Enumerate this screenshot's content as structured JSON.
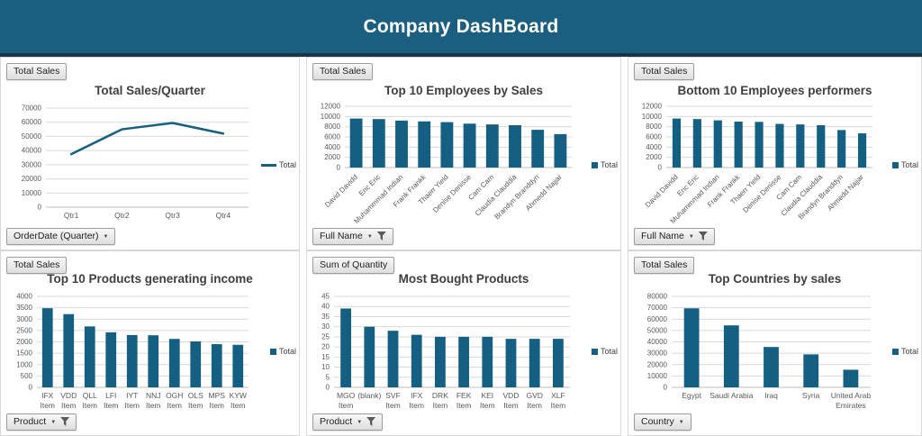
{
  "header": {
    "title": "Company DashBoard"
  },
  "accent_color": "#156082",
  "chart_data": [
    {
      "id": "total-sales-quarter",
      "type": "line",
      "title": "Total Sales/Quarter",
      "value_button": "Total Sales",
      "field_button": "OrderDate (Quarter)",
      "field_filtered": false,
      "categories": [
        [
          "Qtr1"
        ],
        [
          "Qtr2"
        ],
        [
          "Qtr3"
        ],
        [
          "Qtr4"
        ]
      ],
      "values": [
        37500,
        55000,
        59500,
        52000
      ],
      "ylim": [
        0,
        70000
      ],
      "ytick": 10000,
      "legend": [
        "Total"
      ],
      "legend_position": "right",
      "grid": true,
      "color": "#156082"
    },
    {
      "id": "top-10-employees-by-sales",
      "type": "bar",
      "title": "Top 10 Employees by Sales",
      "value_button": "Total Sales",
      "field_button": "Full Name",
      "field_filtered": true,
      "categories": [
        [
          "David Davidd"
        ],
        [
          "Eric Eric"
        ],
        [
          "Muhammmad Indian"
        ],
        [
          "Frank Frankk"
        ],
        [
          "Thaerr Yield"
        ],
        [
          "Denise Denisse"
        ],
        [
          "Cam Cam"
        ],
        [
          "Claudia Clauddia"
        ],
        [
          "Brandyn Branddyn"
        ],
        [
          "Ahmedd Najjar"
        ]
      ],
      "values": [
        9600,
        9500,
        9200,
        9050,
        8900,
        8600,
        8450,
        8300,
        7400,
        6550
      ],
      "ylim": [
        0,
        12000
      ],
      "ytick": 2000,
      "legend": [
        "Total"
      ],
      "legend_position": "right",
      "grid": true,
      "color": "#156082"
    },
    {
      "id": "bottom-10-employees-performers",
      "type": "bar",
      "title": "Bottom 10 Employees performers",
      "value_button": "Total Sales",
      "field_button": "Full Name",
      "field_filtered": true,
      "categories": [
        [
          "David Davidd"
        ],
        [
          "Eric Eric"
        ],
        [
          "Muhammmad Indian"
        ],
        [
          "Frank Frankk"
        ],
        [
          "Thaerr Yield"
        ],
        [
          "Denise Denisse"
        ],
        [
          "Cam Cam"
        ],
        [
          "Claudia Clauddia"
        ],
        [
          "Brandyn Branddyn"
        ],
        [
          "Ahmedd Najjar"
        ]
      ],
      "values": [
        9600,
        9500,
        9250,
        9000,
        8950,
        8550,
        8450,
        8300,
        7350,
        6700
      ],
      "ylim": [
        0,
        12000
      ],
      "ytick": 2000,
      "legend": [
        "Total"
      ],
      "legend_position": "right",
      "grid": true,
      "color": "#156082"
    },
    {
      "id": "top-10-products-generating-income",
      "type": "bar",
      "title": "Top 10 Products generating income",
      "value_button": "Total Sales",
      "field_button": "Product",
      "field_filtered": true,
      "categories": [
        [
          "IFX",
          "Item"
        ],
        [
          "VDD",
          "Item"
        ],
        [
          "QLL",
          "Item"
        ],
        [
          "LFI",
          "Item"
        ],
        [
          "IYT",
          "Item"
        ],
        [
          "NNJ",
          "Item"
        ],
        [
          "OGH",
          "Item"
        ],
        [
          "OLS",
          "Item"
        ],
        [
          "MPS",
          "Item"
        ],
        [
          "KYW",
          "Item"
        ]
      ],
      "values": [
        3480,
        3220,
        2680,
        2420,
        2300,
        2290,
        2130,
        2020,
        1900,
        1870
      ],
      "ylim": [
        0,
        4000
      ],
      "ytick": 500,
      "legend": [
        "Total"
      ],
      "legend_position": "right",
      "grid": true,
      "color": "#156082"
    },
    {
      "id": "most-bought-products",
      "type": "bar",
      "title": "Most Bought Products",
      "value_button": "Sum of Quantity",
      "field_button": "Product",
      "field_filtered": true,
      "categories": [
        [
          "MGO",
          "Item"
        ],
        [
          "(blank)"
        ],
        [
          "SVF",
          "Item"
        ],
        [
          "IFX",
          "Item"
        ],
        [
          "DRK",
          "Item"
        ],
        [
          "FEK",
          "Item"
        ],
        [
          "KEI",
          "Item"
        ],
        [
          "VDD",
          "Item"
        ],
        [
          "GVD",
          "Item"
        ],
        [
          "XLF",
          "Item"
        ]
      ],
      "values": [
        39,
        30,
        28,
        26,
        25,
        25,
        25,
        24,
        24,
        24
      ],
      "ylim": [
        0,
        45
      ],
      "ytick": 5,
      "legend": [
        "Total"
      ],
      "legend_position": "right",
      "grid": true,
      "color": "#156082"
    },
    {
      "id": "top-countries-by-sales",
      "type": "bar",
      "title": "Top Countries by sales",
      "value_button": "Total Sales",
      "field_button": "Country",
      "field_filtered": false,
      "categories": [
        [
          "Egypt"
        ],
        [
          "Saudi Arabia"
        ],
        [
          "Iraq"
        ],
        [
          "Syria"
        ],
        [
          "United Arab",
          "Emirates"
        ]
      ],
      "values": [
        69500,
        54500,
        35500,
        29000,
        15500
      ],
      "ylim": [
        0,
        80000
      ],
      "ytick": 10000,
      "legend": [
        "Total"
      ],
      "legend_position": "right",
      "grid": true,
      "color": "#156082"
    }
  ]
}
